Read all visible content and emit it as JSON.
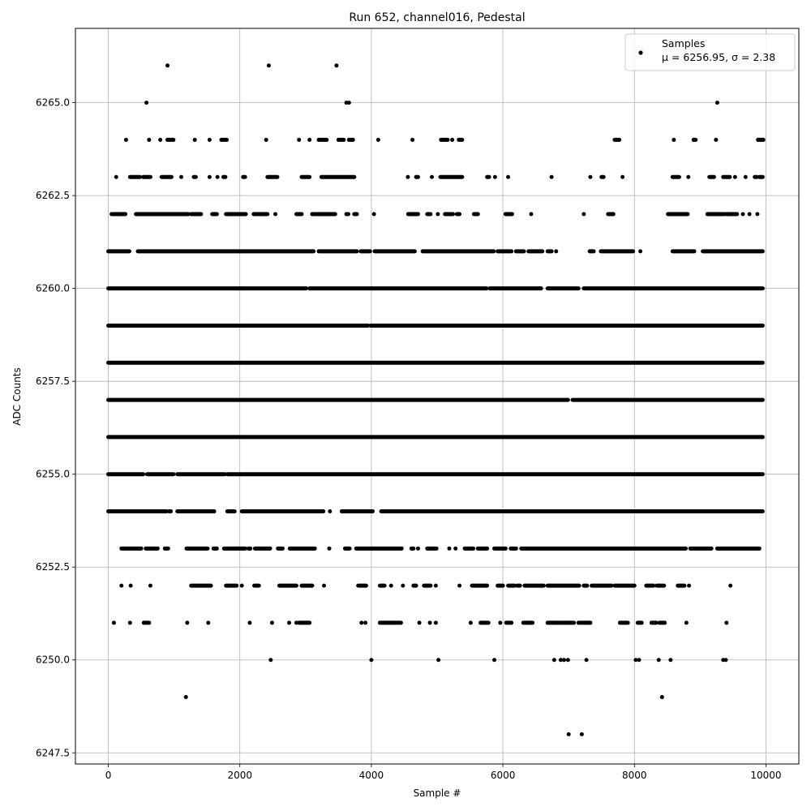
{
  "chart_data": {
    "type": "scatter",
    "title": "Run 652, channel016, Pedestal",
    "xlabel": "Sample #",
    "ylabel": "ADC Counts",
    "xlim": [
      -500,
      10500
    ],
    "ylim": [
      6247.2,
      6267.0
    ],
    "x_ticks": [
      0,
      2000,
      4000,
      6000,
      8000,
      10000
    ],
    "y_ticks": [
      6247.5,
      6250.0,
      6252.5,
      6255.0,
      6257.5,
      6260.0,
      6262.5,
      6265.0
    ],
    "x_tick_labels": [
      "0",
      "2000",
      "4000",
      "6000",
      "8000",
      "10000"
    ],
    "y_tick_labels": [
      "6247.5",
      "6250.0",
      "6252.5",
      "6255.0",
      "6257.5",
      "6260.0",
      "6262.5",
      "6265.0"
    ],
    "grid": true,
    "legend_position": "top-right",
    "marker_color": "#000000",
    "series": [
      {
        "name": "Samples",
        "stats_label": "μ = 6256.95, σ = 2.38",
        "mean": 6256.95,
        "sigma": 2.38,
        "points": [
          {
            "x": 7000,
            "y": 6248
          },
          {
            "x": 7200,
            "y": 6248
          },
          {
            "x": 1180,
            "y": 6249
          },
          {
            "x": 8420,
            "y": 6249
          },
          {
            "x": 2470,
            "y": 6250
          },
          {
            "x": 4000,
            "y": 6250
          },
          {
            "x": 5020,
            "y": 6250
          },
          {
            "x": 5870,
            "y": 6250
          },
          {
            "x": 6780,
            "y": 6250
          },
          {
            "x": 6880,
            "y": 6250
          },
          {
            "x": 6930,
            "y": 6250
          },
          {
            "x": 6990,
            "y": 6250
          },
          {
            "x": 7270,
            "y": 6250
          },
          {
            "x": 8020,
            "y": 6250
          },
          {
            "x": 8070,
            "y": 6250
          },
          {
            "x": 8370,
            "y": 6250
          },
          {
            "x": 8550,
            "y": 6250
          },
          {
            "x": 9350,
            "y": 6250
          },
          {
            "x": 9390,
            "y": 6250
          },
          {
            "x": 900,
            "y": 6266
          },
          {
            "x": 2440,
            "y": 6266
          },
          {
            "x": 3470,
            "y": 6266
          },
          {
            "x": 580,
            "y": 6265
          },
          {
            "x": 3620,
            "y": 6265
          },
          {
            "x": 3660,
            "y": 6265
          },
          {
            "x": 9260,
            "y": 6265
          }
        ]
      }
    ],
    "level_bands": [
      {
        "y": 6251,
        "x_ranges": [
          [
            80,
            90
          ],
          [
            320,
            340
          ],
          [
            540,
            620
          ],
          [
            1190,
            1210
          ],
          [
            1510,
            1530
          ],
          [
            2140,
            2160
          ],
          [
            2480,
            2500
          ],
          [
            2740,
            2760
          ],
          [
            2850,
            2870
          ],
          [
            2900,
            3060
          ],
          [
            3840,
            3860
          ],
          [
            3900,
            3920
          ],
          [
            4130,
            4450
          ],
          [
            4720,
            4740
          ],
          [
            4880,
            4900
          ],
          [
            4970,
            4990
          ],
          [
            5500,
            5520
          ],
          [
            5660,
            5780
          ],
          [
            5950,
            5970
          ],
          [
            6050,
            6130
          ],
          [
            6310,
            6450
          ],
          [
            6680,
            6880
          ],
          [
            6900,
            7080
          ],
          [
            7150,
            7330
          ],
          [
            7780,
            7900
          ],
          [
            8050,
            8110
          ],
          [
            8260,
            8330
          ],
          [
            8380,
            8460
          ],
          [
            8780,
            8800
          ],
          [
            9390,
            9410
          ]
        ]
      },
      {
        "y": 6252,
        "x_ranges": [
          [
            190,
            210
          ],
          [
            330,
            350
          ],
          [
            630,
            650
          ],
          [
            1260,
            1560
          ],
          [
            1790,
            1950
          ],
          [
            2020,
            2040
          ],
          [
            2220,
            2290
          ],
          [
            2600,
            2860
          ],
          [
            2940,
            3100
          ],
          [
            3270,
            3290
          ],
          [
            3800,
            3920
          ],
          [
            4130,
            4200
          ],
          [
            4290,
            4310
          ],
          [
            4470,
            4490
          ],
          [
            4640,
            4680
          ],
          [
            4800,
            4900
          ],
          [
            4970,
            4990
          ],
          [
            5330,
            5350
          ],
          [
            5530,
            5760
          ],
          [
            5920,
            6000
          ],
          [
            6080,
            6180
          ],
          [
            6220,
            6260
          ],
          [
            6330,
            6620
          ],
          [
            6680,
            7160
          ],
          [
            7230,
            7280
          ],
          [
            7350,
            7650
          ],
          [
            7700,
            8000
          ],
          [
            8180,
            8290
          ],
          [
            8340,
            8450
          ],
          [
            8660,
            8760
          ],
          [
            8820,
            8840
          ],
          [
            9450,
            9470
          ]
        ]
      },
      {
        "y": 6253,
        "x_ranges": [
          [
            200,
            500
          ],
          [
            570,
            750
          ],
          [
            860,
            910
          ],
          [
            1190,
            1510
          ],
          [
            1600,
            1650
          ],
          [
            1760,
            2080
          ],
          [
            2130,
            2160
          ],
          [
            2230,
            2460
          ],
          [
            2580,
            2650
          ],
          [
            2760,
            3140
          ],
          [
            3350,
            3370
          ],
          [
            3600,
            3670
          ],
          [
            3770,
            4460
          ],
          [
            4610,
            4640
          ],
          [
            4700,
            4720
          ],
          [
            4850,
            4990
          ],
          [
            5180,
            5190
          ],
          [
            5270,
            5290
          ],
          [
            5420,
            5550
          ],
          [
            5620,
            5760
          ],
          [
            5870,
            6040
          ],
          [
            6120,
            6200
          ],
          [
            6280,
            8780
          ],
          [
            8850,
            9170
          ],
          [
            9260,
            9900
          ]
        ]
      },
      {
        "y": 6254,
        "x_ranges": [
          [
            0,
            880
          ],
          [
            920,
            950
          ],
          [
            1050,
            1610
          ],
          [
            1810,
            1920
          ],
          [
            2030,
            3270
          ],
          [
            3360,
            3380
          ],
          [
            3550,
            4020
          ],
          [
            4150,
            9950
          ]
        ]
      },
      {
        "y": 6255,
        "x_ranges": [
          [
            0,
            530
          ],
          [
            590,
            990
          ],
          [
            1050,
            1770
          ],
          [
            1810,
            9950
          ]
        ]
      },
      {
        "y": 6256,
        "x_ranges": [
          [
            0,
            9950
          ]
        ]
      },
      {
        "y": 6257,
        "x_ranges": [
          [
            0,
            6990
          ],
          [
            7060,
            9950
          ]
        ]
      },
      {
        "y": 6258,
        "x_ranges": [
          [
            0,
            9950
          ]
        ]
      },
      {
        "y": 6259,
        "x_ranges": [
          [
            0,
            3950
          ],
          [
            3990,
            9950
          ]
        ]
      },
      {
        "y": 6260,
        "x_ranges": [
          [
            0,
            3010
          ],
          [
            3060,
            5750
          ],
          [
            5800,
            6580
          ],
          [
            6680,
            7150
          ],
          [
            7230,
            9950
          ]
        ]
      },
      {
        "y": 6261,
        "x_ranges": [
          [
            0,
            320
          ],
          [
            450,
            3120
          ],
          [
            3200,
            3780
          ],
          [
            3840,
            3980
          ],
          [
            4050,
            4660
          ],
          [
            4780,
            5860
          ],
          [
            5920,
            6130
          ],
          [
            6200,
            6320
          ],
          [
            6390,
            6600
          ],
          [
            6680,
            6740
          ],
          [
            6800,
            6820
          ],
          [
            7320,
            7380
          ],
          [
            7490,
            7980
          ],
          [
            8080,
            8100
          ],
          [
            8580,
            8910
          ],
          [
            9040,
            9950
          ]
        ]
      },
      {
        "y": 6262,
        "x_ranges": [
          [
            50,
            260
          ],
          [
            420,
            1220
          ],
          [
            1260,
            1410
          ],
          [
            1580,
            1650
          ],
          [
            1790,
            2090
          ],
          [
            2210,
            2420
          ],
          [
            2530,
            2550
          ],
          [
            2860,
            2940
          ],
          [
            3100,
            3450
          ],
          [
            3620,
            3650
          ],
          [
            3740,
            3780
          ],
          [
            4030,
            4050
          ],
          [
            4560,
            4710
          ],
          [
            4850,
            4900
          ],
          [
            5000,
            5020
          ],
          [
            5120,
            5240
          ],
          [
            5300,
            5340
          ],
          [
            5560,
            5620
          ],
          [
            6040,
            6140
          ],
          [
            6420,
            6440
          ],
          [
            7220,
            7240
          ],
          [
            7600,
            7680
          ],
          [
            8510,
            8810
          ],
          [
            9110,
            9370
          ],
          [
            9400,
            9560
          ],
          [
            9640,
            9660
          ],
          [
            9740,
            9760
          ],
          [
            9860,
            9880
          ]
        ]
      },
      {
        "y": 6263,
        "x_ranges": [
          [
            110,
            130
          ],
          [
            330,
            480
          ],
          [
            530,
            640
          ],
          [
            810,
            960
          ],
          [
            1100,
            1120
          ],
          [
            1300,
            1330
          ],
          [
            1530,
            1550
          ],
          [
            1650,
            1670
          ],
          [
            1750,
            1780
          ],
          [
            2050,
            2080
          ],
          [
            2420,
            2570
          ],
          [
            2940,
            3060
          ],
          [
            3240,
            3740
          ],
          [
            4550,
            4560
          ],
          [
            4680,
            4710
          ],
          [
            4910,
            4930
          ],
          [
            5050,
            5380
          ],
          [
            5760,
            5790
          ],
          [
            5870,
            5890
          ],
          [
            6070,
            6090
          ],
          [
            6730,
            6750
          ],
          [
            7320,
            7340
          ],
          [
            7500,
            7530
          ],
          [
            7810,
            7830
          ],
          [
            8580,
            8680
          ],
          [
            8810,
            8830
          ],
          [
            9140,
            9210
          ],
          [
            9350,
            9450
          ],
          [
            9520,
            9540
          ],
          [
            9680,
            9700
          ],
          [
            9830,
            9860
          ],
          [
            9900,
            9950
          ]
        ]
      },
      {
        "y": 6264,
        "x_ranges": [
          [
            260,
            280
          ],
          [
            610,
            630
          ],
          [
            780,
            800
          ],
          [
            900,
            990
          ],
          [
            1310,
            1320
          ],
          [
            1530,
            1550
          ],
          [
            1720,
            1800
          ],
          [
            2390,
            2410
          ],
          [
            2890,
            2910
          ],
          [
            3050,
            3070
          ],
          [
            3200,
            3320
          ],
          [
            3500,
            3580
          ],
          [
            3660,
            3720
          ],
          [
            4100,
            4110
          ],
          [
            4620,
            4630
          ],
          [
            5060,
            5160
          ],
          [
            5220,
            5240
          ],
          [
            5330,
            5380
          ],
          [
            7700,
            7770
          ],
          [
            8590,
            8610
          ],
          [
            8900,
            8930
          ],
          [
            9230,
            9250
          ],
          [
            9880,
            9960
          ]
        ]
      }
    ]
  }
}
